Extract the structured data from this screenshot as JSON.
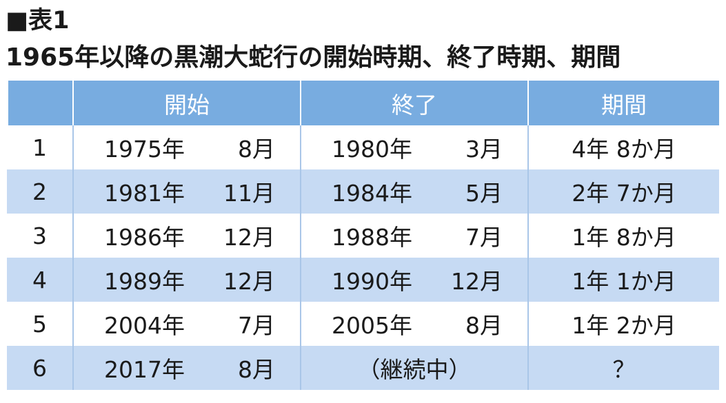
{
  "header": {
    "title": "■表1",
    "subtitle": "1965年以降の黒潮大蛇行の開始時期、終了時期、期間"
  },
  "table": {
    "columns": [
      "開始",
      "終了",
      "期間"
    ],
    "rows": [
      {
        "no": "1",
        "start": {
          "year": "1975年",
          "month": "8月"
        },
        "end": {
          "year": "1980年",
          "month": "3月"
        },
        "period": "4年 8か月"
      },
      {
        "no": "2",
        "start": {
          "year": "1981年",
          "month": "11月"
        },
        "end": {
          "year": "1984年",
          "month": "5月"
        },
        "period": "2年 7か月"
      },
      {
        "no": "3",
        "start": {
          "year": "1986年",
          "month": "12月"
        },
        "end": {
          "year": "1988年",
          "month": "7月"
        },
        "period": "1年 8か月"
      },
      {
        "no": "4",
        "start": {
          "year": "1989年",
          "month": "12月"
        },
        "end": {
          "year": "1990年",
          "month": "12月"
        },
        "period": "1年 1か月"
      },
      {
        "no": "5",
        "start": {
          "year": "2004年",
          "month": "7月"
        },
        "end": {
          "year": "2005年",
          "month": "8月"
        },
        "period": "1年 2か月"
      },
      {
        "no": "6",
        "start": {
          "year": "2017年",
          "month": "8月"
        },
        "end": {
          "text": "（継続中）"
        },
        "period": "？"
      }
    ]
  }
}
